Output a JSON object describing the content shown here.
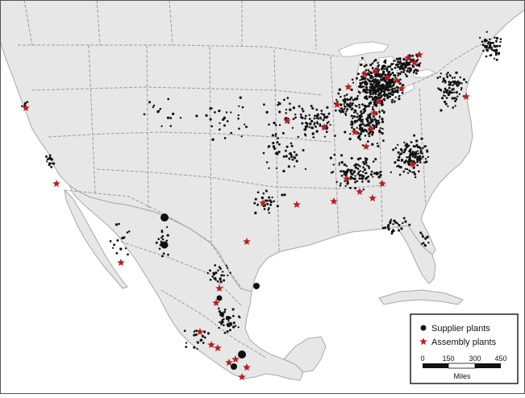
{
  "map": {
    "colors": {
      "land": "#e7e7e7",
      "border": "#a8a8a8",
      "water": "#ffffff",
      "supplier": "#111111",
      "assembly": "#b52025",
      "frame": "#555555"
    }
  },
  "legend": {
    "supplier_label": "Supplier plants",
    "assembly_label": "Assembly plants",
    "scale_ticks": [
      "0",
      "150",
      "300",
      "450"
    ],
    "scale_unit": "Miles"
  }
}
